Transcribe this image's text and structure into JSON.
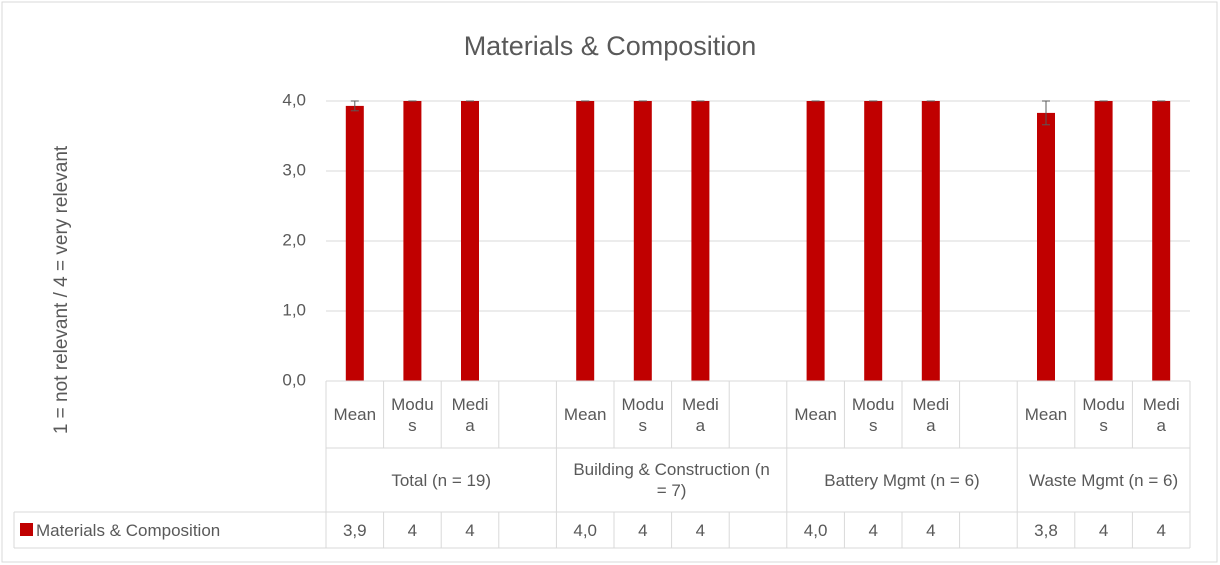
{
  "chart_data": {
    "type": "bar",
    "title": "Materials & Composition",
    "y_label": "1 = not relevant / 4 = very relevant",
    "categories": [
      "Mean",
      "Modus",
      "Media",
      null,
      "Mean",
      "Modus",
      "Media",
      null,
      "Mean",
      "Modus",
      "Media",
      null,
      "Mean",
      "Modus",
      "Media"
    ],
    "groups": [
      {
        "label": "Total (n = 19)",
        "size": 4
      },
      {
        "label": "Building & Construction (n = 7)",
        "size": 4
      },
      {
        "label": "Battery Mgmt (n = 6)",
        "size": 4
      },
      {
        "label": "Waste Mgmt (n = 6)",
        "size": 3
      }
    ],
    "series": [
      {
        "name": "Materials & Composition",
        "color": "#c00000",
        "values": [
          3.93,
          4,
          4,
          null,
          4.0,
          4,
          4,
          null,
          4.0,
          4,
          4,
          null,
          3.83,
          4,
          4
        ],
        "value_labels": [
          "3,9",
          "4",
          "4",
          null,
          "4,0",
          "4",
          "4",
          null,
          "4,0",
          "4",
          "4",
          null,
          "3,8",
          "4",
          "4"
        ],
        "errors": [
          0.07,
          0,
          0,
          null,
          0,
          0,
          0,
          null,
          0,
          0,
          0,
          null,
          0.17,
          0,
          0
        ]
      }
    ],
    "ylim": [
      0,
      4
    ],
    "yticks": [
      {
        "value": 0,
        "label": "0,0"
      },
      {
        "value": 1,
        "label": "1,0"
      },
      {
        "value": 2,
        "label": "2,0"
      },
      {
        "value": 3,
        "label": "3,0"
      },
      {
        "value": 4,
        "label": "4,0"
      }
    ],
    "grid": true,
    "data_table": true
  }
}
